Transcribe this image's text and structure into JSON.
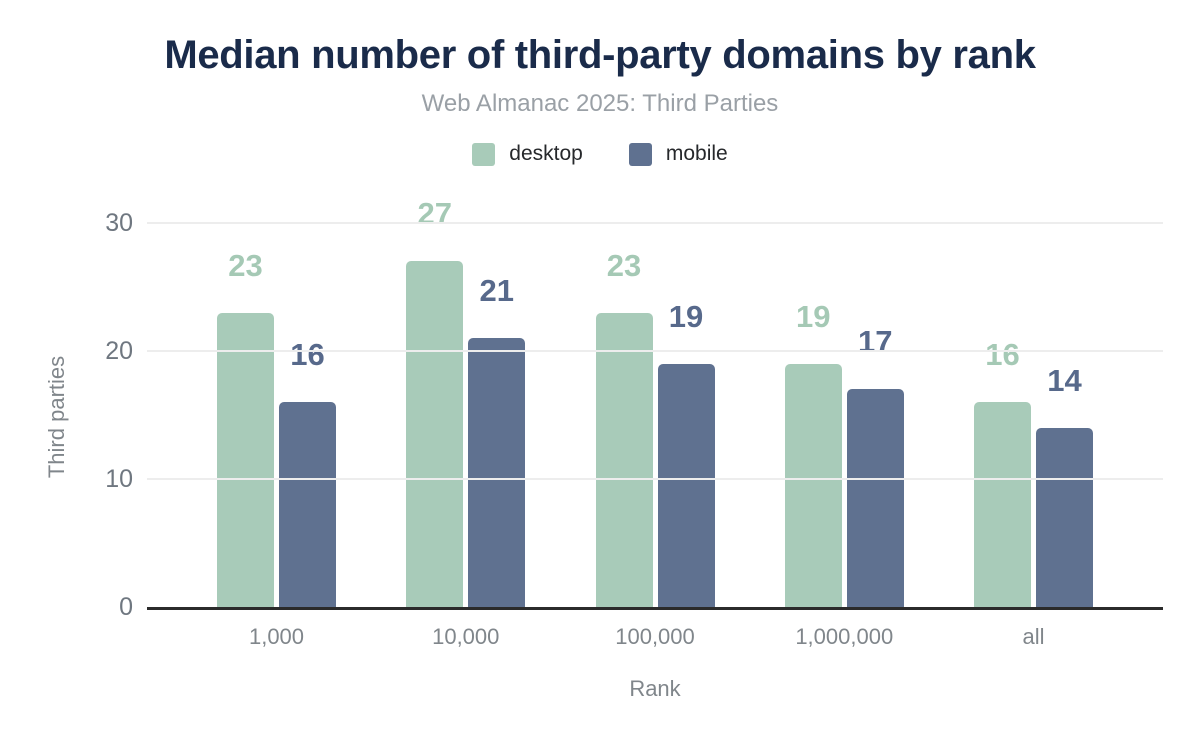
{
  "chart_data": {
    "type": "bar",
    "title": "Median number of third-party domains by rank",
    "subtitle": "Web Almanac 2025: Third Parties",
    "xlabel": "Rank",
    "ylabel": "Third parties",
    "categories": [
      "1,000",
      "10,000",
      "100,000",
      "1,000,000",
      "all"
    ],
    "series": [
      {
        "name": "desktop",
        "color": "#a8cbb9",
        "label_color": "#a5c9b5",
        "values": [
          23,
          27,
          23,
          19,
          16
        ]
      },
      {
        "name": "mobile",
        "color": "#5f7190",
        "label_color": "#57698b",
        "values": [
          16,
          21,
          19,
          17,
          14
        ]
      }
    ],
    "ylim": [
      0,
      30
    ],
    "yticks": [
      0,
      10,
      20,
      30
    ],
    "grid": true,
    "legend_position": "top",
    "colors": {
      "title": "#1a2b4a",
      "subtitle": "#9aa0a6",
      "axis_text": "#6f7780",
      "category_text": "#80868b",
      "axis_title_text": "#80868b",
      "legend_text": "#26282b",
      "gridline": "#ededed",
      "axis_line": "#2b2b2b",
      "background": "#ffffff"
    }
  }
}
